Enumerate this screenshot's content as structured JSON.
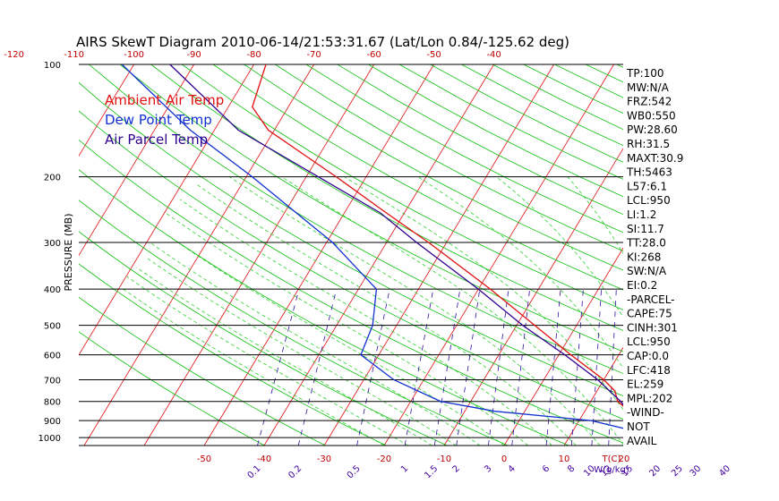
{
  "chart_data": {
    "type": "line",
    "title": "AIRS SkewT Diagram 2010-06-14/21:53:31.67 (Lat/Lon 0.84/-125.62 deg)",
    "ylabel": "PRESSURE (MB)",
    "xlabel": "T(C)",
    "mixing_ratio_unit": "W(g/kg)",
    "pressure_ticks": [
      "100",
      "200",
      "300",
      "400",
      "500",
      "600",
      "700",
      "800",
      "900",
      "1000"
    ],
    "pressure_levels": [
      100,
      200,
      300,
      400,
      500,
      600,
      700,
      800,
      900,
      1000
    ],
    "top_temp_ticks": [
      "-120",
      "-110",
      "-100",
      "-90",
      "-80",
      "-70",
      "-60",
      "-50",
      "-40"
    ],
    "bottom_temp_ticks": [
      "-50",
      "-40",
      "-30",
      "-20",
      "-10",
      "0",
      "10",
      "20"
    ],
    "mixing_ratio_ticks": [
      "0.1",
      "0.2",
      "0.5",
      "1",
      "1.5",
      "2",
      "3",
      "4",
      "6",
      "8",
      "10",
      "12",
      "15",
      "20",
      "25",
      "30",
      "40"
    ],
    "legend": [
      {
        "name": "Ambient Air Temp",
        "color": "#e01010"
      },
      {
        "name": "Dew Point Temp",
        "color": "#1030d0"
      },
      {
        "name": "Air Parcel Temp",
        "color": "#300090"
      }
    ],
    "series": [
      {
        "name": "Ambient Air Temp",
        "color": "#e01010",
        "points": [
          {
            "p": 1000,
            "t": 25.0
          },
          {
            "p": 950,
            "t": 23.0
          },
          {
            "p": 925,
            "t": 20.5
          },
          {
            "p": 900,
            "t": 20.0
          },
          {
            "p": 850,
            "t": 17.5
          },
          {
            "p": 800,
            "t": 14.5
          },
          {
            "p": 750,
            "t": 13.0
          },
          {
            "p": 700,
            "t": 10.0
          },
          {
            "p": 600,
            "t": 2.0
          },
          {
            "p": 500,
            "t": -7.0
          },
          {
            "p": 400,
            "t": -18.0
          },
          {
            "p": 300,
            "t": -33.0
          },
          {
            "p": 250,
            "t": -43.0
          },
          {
            "p": 200,
            "t": -55.0
          },
          {
            "p": 150,
            "t": -71.0
          },
          {
            "p": 130,
            "t": -76.0
          },
          {
            "p": 100,
            "t": -78.0
          }
        ]
      },
      {
        "name": "Dew Point Temp",
        "color": "#1030d0",
        "points": [
          {
            "p": 1000,
            "t": 22.0
          },
          {
            "p": 950,
            "t": 19.0
          },
          {
            "p": 900,
            "t": 12.0
          },
          {
            "p": 850,
            "t": -5.0
          },
          {
            "p": 800,
            "t": -15.0
          },
          {
            "p": 700,
            "t": -25.0
          },
          {
            "p": 600,
            "t": -33.0
          },
          {
            "p": 500,
            "t": -34.0
          },
          {
            "p": 400,
            "t": -37.0
          },
          {
            "p": 300,
            "t": -49.0
          },
          {
            "p": 250,
            "t": -58.0
          },
          {
            "p": 200,
            "t": -69.0
          },
          {
            "p": 150,
            "t": -84.0
          },
          {
            "p": 100,
            "t": -102.0
          }
        ]
      },
      {
        "name": "Air Parcel Temp",
        "color": "#300090",
        "points": [
          {
            "p": 1000,
            "t": 24.0
          },
          {
            "p": 950,
            "t": 21.5
          },
          {
            "p": 900,
            "t": 19.5
          },
          {
            "p": 800,
            "t": 15.0
          },
          {
            "p": 700,
            "t": 9.0
          },
          {
            "p": 600,
            "t": 1.0
          },
          {
            "p": 500,
            "t": -9.0
          },
          {
            "p": 400,
            "t": -20.0
          },
          {
            "p": 300,
            "t": -35.0
          },
          {
            "p": 250,
            "t": -44.0
          },
          {
            "p": 200,
            "t": -58.0
          },
          {
            "p": 150,
            "t": -76.0
          },
          {
            "p": 100,
            "t": -94.0
          }
        ]
      }
    ],
    "stats": [
      "TP:100",
      "MW:N/A",
      "FRZ:542",
      "WB0:550",
      "PW:28.60",
      "RH:31.5",
      "MAXT:30.9",
      "TH:5463",
      "L57:6.1",
      "LCL:950",
      "LI:1.2",
      "SI:11.7",
      "TT:28.0",
      "KI:268",
      "SW:N/A",
      "EI:0.2",
      "-PARCEL-",
      "CAPE:75",
      "CINH:301",
      "LCL:950",
      "CAP:0.0",
      "LFC:418",
      "EL:259",
      "MPL:202",
      "-WIND-",
      "NOT",
      "AVAIL"
    ],
    "colors": {
      "isotherm": "#e01010",
      "dry_adiabat": "#10c010",
      "moist_adiabat": "#30d030",
      "mixing_ratio": "#3010a0",
      "isobar": "#000000",
      "dew_point": "#1030d0",
      "parcel": "#300090",
      "ambient": "#e01010",
      "tick_text": "#c00000",
      "mixing_text": "#4000a0"
    },
    "grid": true,
    "legend_position": "top-left"
  }
}
